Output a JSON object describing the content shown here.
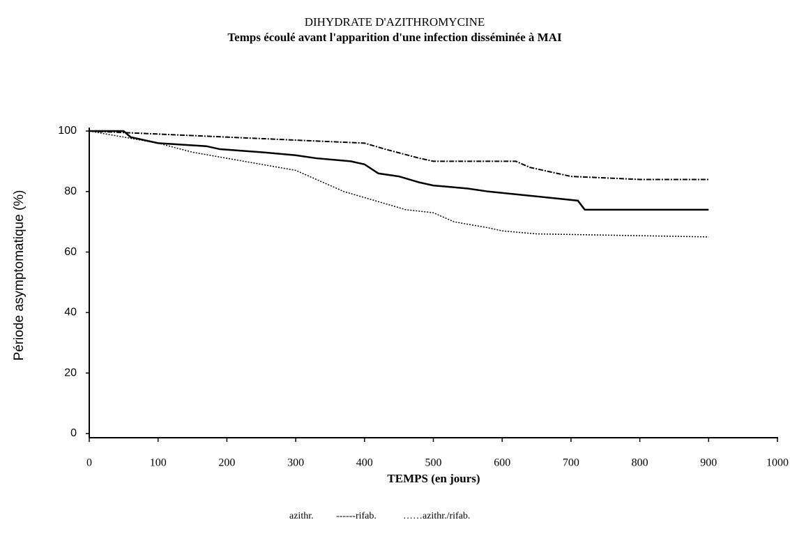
{
  "chart_data": {
    "type": "line",
    "title": "DIHYDRATE D'AZITHROMYCINE",
    "subtitle": "Temps écoulé avant l'apparition d'une infection disséminée à MAI",
    "xlabel": "TEMPS (en jours)",
    "ylabel": "Période asymptomatique  (%)",
    "xlim": [
      0,
      1000
    ],
    "ylim": [
      0,
      100
    ],
    "xticks": [
      0,
      100,
      200,
      300,
      400,
      500,
      600,
      700,
      800,
      900,
      1000
    ],
    "yticks": [
      0,
      20,
      40,
      60,
      80,
      100
    ],
    "series": [
      {
        "name": "azithr.",
        "color": "#000000",
        "style": "solid",
        "x": [
          0,
          50,
          60,
          100,
          170,
          190,
          250,
          300,
          330,
          380,
          400,
          420,
          450,
          480,
          500,
          550,
          580,
          710,
          720,
          900
        ],
        "values": [
          100,
          100,
          98,
          96,
          95,
          94,
          93,
          92,
          91,
          90,
          89,
          86,
          85,
          83,
          82,
          81,
          80,
          77,
          74,
          74
        ]
      },
      {
        "name": "------rifab.",
        "color": "#000000",
        "style": "dashdot",
        "x": [
          0,
          100,
          200,
          300,
          400,
          430,
          480,
          500,
          620,
          640,
          660,
          700,
          800,
          900
        ],
        "values": [
          100,
          99,
          98,
          97,
          96,
          94,
          91,
          90,
          90,
          88,
          87,
          85,
          84,
          84
        ]
      },
      {
        "name": "……azithr./rifab.",
        "color": "#000000",
        "style": "dotted",
        "x": [
          0,
          50,
          100,
          150,
          200,
          250,
          300,
          330,
          370,
          400,
          430,
          460,
          500,
          530,
          580,
          600,
          650,
          900
        ],
        "values": [
          100,
          98,
          96,
          93,
          91,
          89,
          87,
          84,
          80,
          78,
          76,
          74,
          73,
          70,
          68,
          67,
          66,
          65
        ]
      }
    ]
  }
}
